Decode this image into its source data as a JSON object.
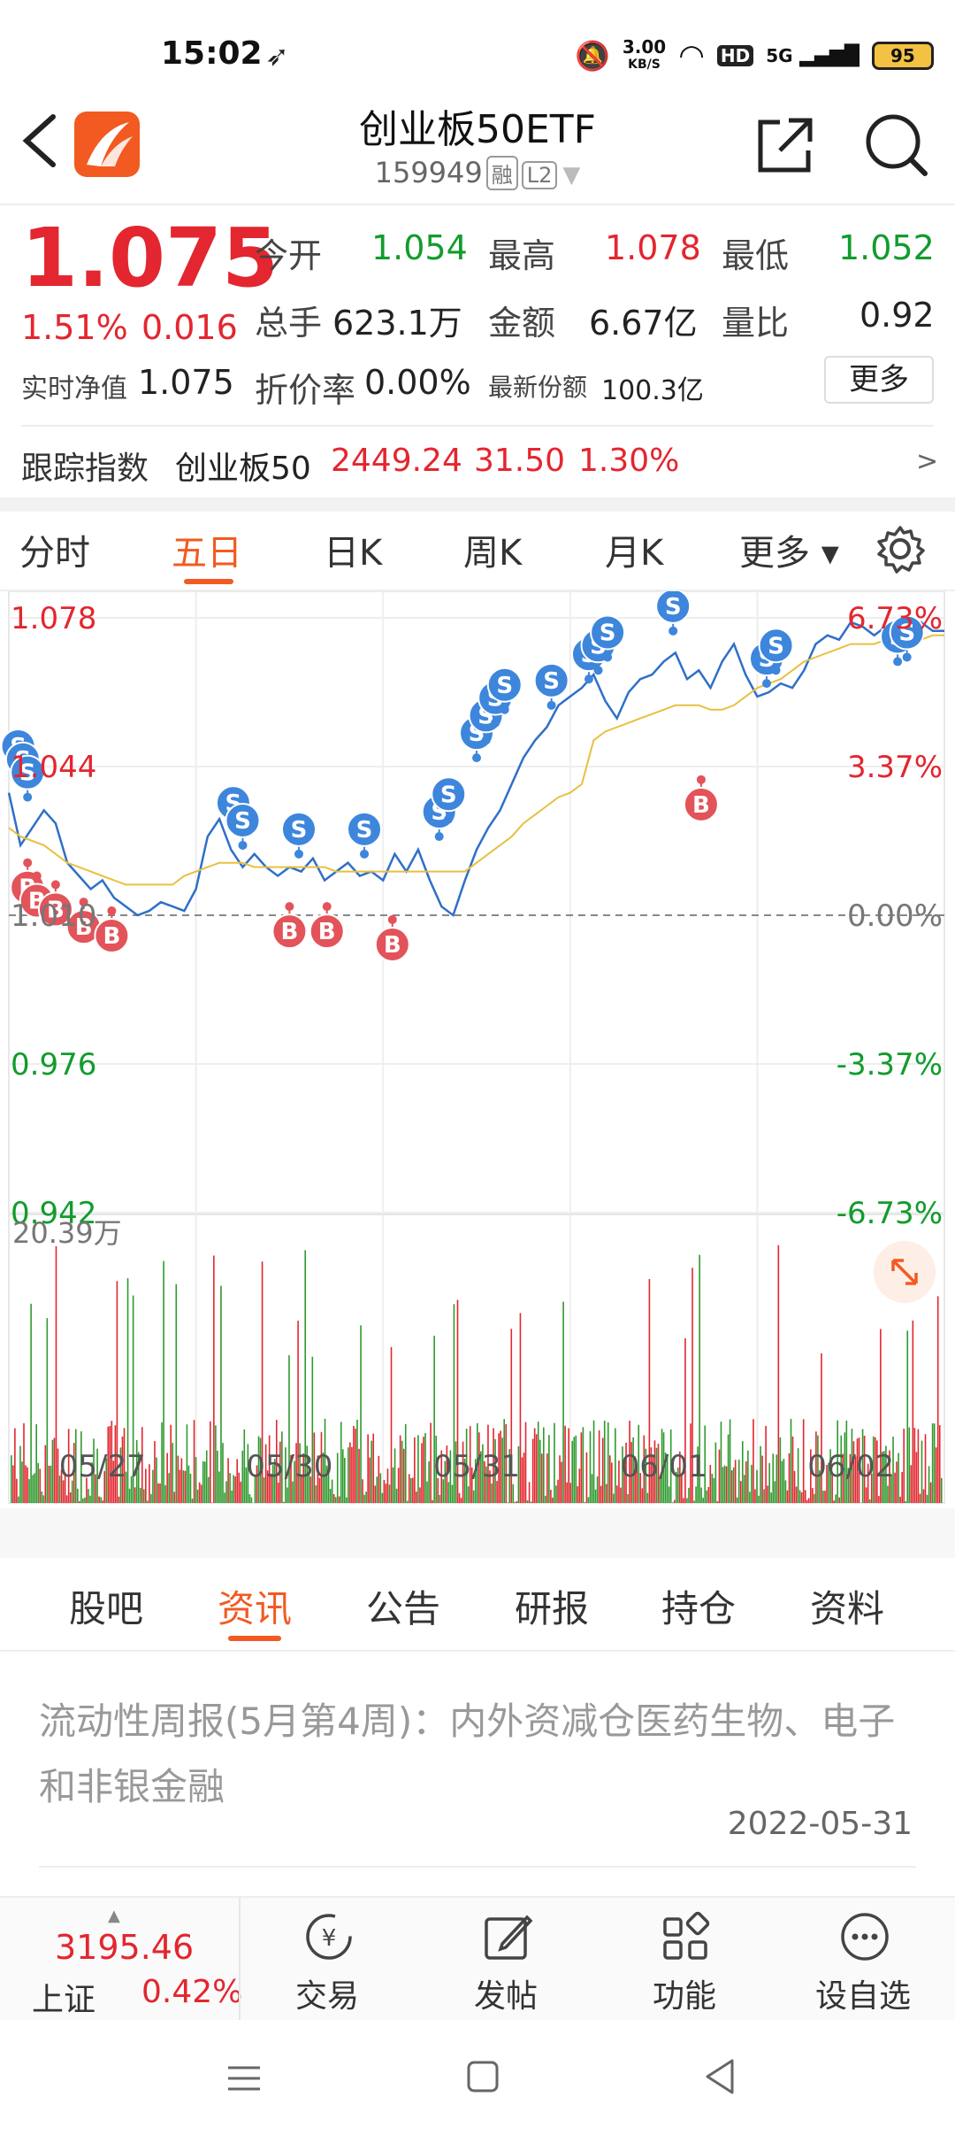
{
  "status": {
    "time": "15:02",
    "speed_value": "3.00",
    "speed_unit": "KB/S",
    "hd": "HD",
    "net": "5G",
    "battery": "95"
  },
  "header": {
    "title": "创业板50ETF",
    "code": "159949",
    "tag_margin": "融",
    "tag_level": "L2"
  },
  "quote": {
    "price": "1.075",
    "change_pct": "1.51%",
    "change": "0.016",
    "open_label": "今开",
    "open": "1.054",
    "high_label": "最高",
    "high": "1.078",
    "low_label": "最低",
    "low": "1.052",
    "volume_label": "总手",
    "volume": "623.1万",
    "amount_label": "金额",
    "amount": "6.67亿",
    "ratio_label": "量比",
    "ratio": "0.92",
    "nav_label": "实时净值",
    "nav": "1.075",
    "discount_label": "折价率",
    "discount": "0.00%",
    "shares_label": "最新份额",
    "shares": "100.3亿",
    "more_label": "更多"
  },
  "index": {
    "label": "跟踪指数",
    "name": "创业板50",
    "value": "2449.24",
    "change": "31.50",
    "pct": "1.30%",
    "arrow": ">"
  },
  "chart_tabs": [
    "分时",
    "五日",
    "日K",
    "周K",
    "月K",
    "更多"
  ],
  "chart_tab_active": 1,
  "chart_data": {
    "type": "line",
    "x_labels": [
      "05/27",
      "05/30",
      "05/31",
      "06/01",
      "06/02"
    ],
    "y_left": [
      "1.078",
      "1.044",
      "1.010",
      "0.976",
      "0.942"
    ],
    "y_right": [
      "6.73%",
      "3.37%",
      "0.00%",
      "-3.37%",
      "-6.73%"
    ],
    "ylim": [
      0.942,
      1.078
    ],
    "prev_close": 1.01,
    "volume_max_label": "20.39万",
    "series": [
      {
        "values": [
          1.038,
          1.026,
          1.03,
          1.034,
          1.031,
          1.022,
          1.019,
          1.016,
          1.018,
          1.014,
          1.012,
          1.01,
          1.011,
          1.013,
          1.012,
          1.011,
          1.016,
          1.028,
          1.032,
          1.025,
          1.021,
          1.024,
          1.021,
          1.019,
          1.021,
          1.02,
          1.023,
          1.018,
          1.02,
          1.022,
          1.019,
          1.02,
          1.018,
          1.024,
          1.02,
          1.025,
          1.018,
          1.012,
          1.01,
          1.018,
          1.025,
          1.03,
          1.034,
          1.04,
          1.046,
          1.05,
          1.053,
          1.058,
          1.06,
          1.062,
          1.065,
          1.059,
          1.055,
          1.061,
          1.064,
          1.065,
          1.068,
          1.07,
          1.064,
          1.066,
          1.062,
          1.068,
          1.072,
          1.065,
          1.06,
          1.061,
          1.063,
          1.062,
          1.066,
          1.072,
          1.074,
          1.073,
          1.077,
          1.076,
          1.074,
          1.076,
          1.076,
          1.075,
          1.077,
          1.075,
          1.075
        ]
      },
      {
        "values": [
          1.03,
          1.028,
          1.027,
          1.026,
          1.024,
          1.022,
          1.021,
          1.02,
          1.019,
          1.018,
          1.017,
          1.017,
          1.017,
          1.017,
          1.017,
          1.019,
          1.02,
          1.021,
          1.022,
          1.022,
          1.022,
          1.021,
          1.021,
          1.021,
          1.021,
          1.021,
          1.021,
          1.021,
          1.02,
          1.02,
          1.02,
          1.02,
          1.02,
          1.02,
          1.02,
          1.02,
          1.02,
          1.02,
          1.02,
          1.02,
          1.022,
          1.024,
          1.026,
          1.028,
          1.031,
          1.033,
          1.035,
          1.037,
          1.038,
          1.04,
          1.05,
          1.052,
          1.053,
          1.054,
          1.055,
          1.056,
          1.057,
          1.058,
          1.058,
          1.058,
          1.057,
          1.057,
          1.058,
          1.06,
          1.062,
          1.063,
          1.064,
          1.066,
          1.068,
          1.069,
          1.07,
          1.071,
          1.072,
          1.072,
          1.072,
          1.073,
          1.073,
          1.073,
          1.073,
          1.074,
          1.074
        ]
      }
    ],
    "signals_s": [
      [
        0.01,
        1.043
      ],
      [
        0.015,
        1.04
      ],
      [
        0.02,
        1.037
      ],
      [
        0.24,
        1.03
      ],
      [
        0.25,
        1.026
      ],
      [
        0.31,
        1.024
      ],
      [
        0.38,
        1.024
      ],
      [
        0.46,
        1.028
      ],
      [
        0.47,
        1.032
      ],
      [
        0.5,
        1.046
      ],
      [
        0.51,
        1.05
      ],
      [
        0.52,
        1.054
      ],
      [
        0.53,
        1.057
      ],
      [
        0.58,
        1.058
      ],
      [
        0.62,
        1.064
      ],
      [
        0.63,
        1.066
      ],
      [
        0.64,
        1.069
      ],
      [
        0.71,
        1.075
      ],
      [
        0.81,
        1.063
      ],
      [
        0.82,
        1.066
      ],
      [
        0.95,
        1.068
      ],
      [
        0.96,
        1.069
      ]
    ],
    "signals_b": [
      [
        0.02,
        1.022
      ],
      [
        0.03,
        1.019
      ],
      [
        0.05,
        1.017
      ],
      [
        0.08,
        1.013
      ],
      [
        0.11,
        1.011
      ],
      [
        0.3,
        1.012
      ],
      [
        0.34,
        1.012
      ],
      [
        0.41,
        1.009
      ],
      [
        0.74,
        1.041
      ]
    ]
  },
  "news_tabs": [
    "股吧",
    "资讯",
    "公告",
    "研报",
    "持仓",
    "资料"
  ],
  "news_tab_active": 1,
  "news": {
    "title": "流动性周报(5月第4周)：内外资减仓医药生物、电子和非银金融",
    "date": "2022-05-31"
  },
  "bottom": {
    "index_value": "3195.46",
    "index_name": "上证",
    "index_pct": "0.42%",
    "trade": "交易",
    "post": "发帖",
    "func": "功能",
    "watch": "设自选"
  }
}
